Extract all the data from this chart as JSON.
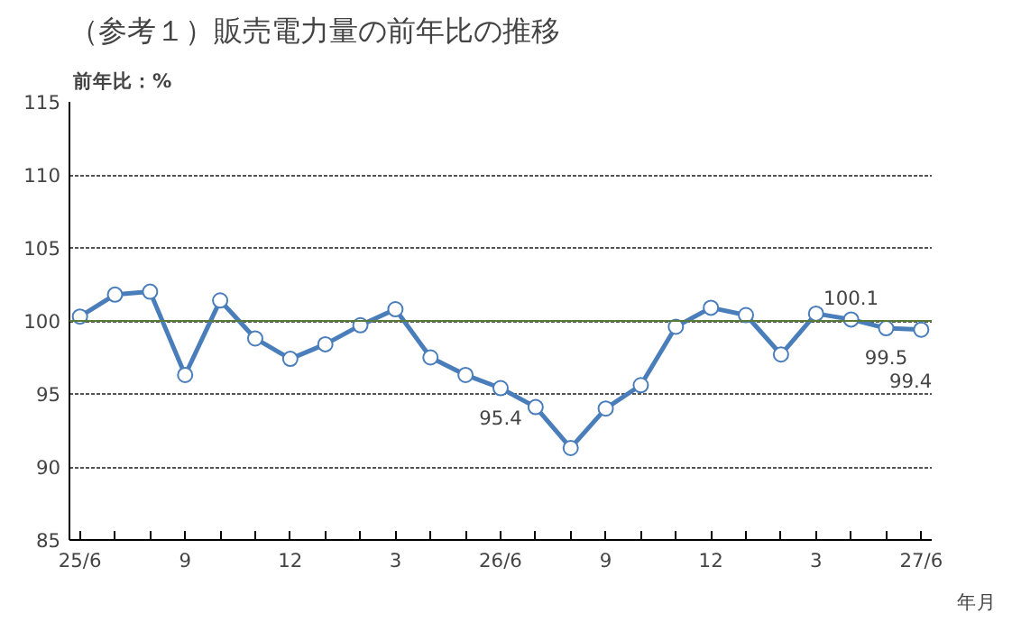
{
  "chart_data": {
    "type": "line",
    "title": "（参考１）販売電力量の前年比の推移",
    "ylabel": "前年比：%",
    "xlabel": "年月",
    "categories": [
      "25/6",
      null,
      null,
      "9",
      null,
      null,
      "12",
      null,
      null,
      "3",
      null,
      null,
      "26/6",
      null,
      null,
      "9",
      null,
      null,
      "12",
      null,
      null,
      "3",
      null,
      null,
      "27/6"
    ],
    "series": [
      {
        "color": "#4a7ebb",
        "values": [
          100.3,
          101.8,
          102.0,
          96.3,
          101.4,
          98.8,
          97.4,
          98.4,
          99.7,
          100.8,
          97.5,
          96.3,
          95.4,
          94.1,
          91.3,
          94.0,
          95.6,
          99.6,
          100.9,
          100.4,
          97.7,
          100.5,
          100.1,
          99.5,
          99.4
        ],
        "value_labels": [
          null,
          null,
          null,
          null,
          null,
          null,
          null,
          null,
          null,
          null,
          null,
          null,
          "95.4",
          null,
          null,
          null,
          null,
          null,
          null,
          null,
          null,
          null,
          "100.1",
          "99.5",
          "99.4"
        ]
      }
    ],
    "ylim": [
      85,
      115
    ],
    "yticks": [
      85,
      90,
      95,
      100,
      105,
      110,
      115
    ],
    "grid": "y",
    "marker": "circle",
    "line_style": "solid",
    "ref_lines": [
      {
        "axis": "y",
        "value": 100,
        "color": "#5a7a3a",
        "line_style": "solid"
      }
    ]
  }
}
